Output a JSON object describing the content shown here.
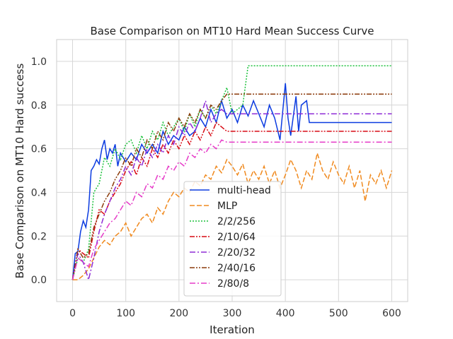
{
  "chart_data": {
    "type": "line",
    "title": "Base Comparison on MT10 Hard Mean Success Curve",
    "xlabel": "Iteration",
    "ylabel": "Base Comparison on MT10 Hard success",
    "xlim": [
      -30,
      630
    ],
    "ylim": [
      -0.1,
      1.1
    ],
    "xticks": [
      0,
      100,
      200,
      300,
      400,
      500,
      600
    ],
    "yticks": [
      0.0,
      0.2,
      0.4,
      0.6,
      0.8,
      1.0
    ],
    "xtick_labels": [
      "0",
      "100",
      "200",
      "300",
      "400",
      "500",
      "600"
    ],
    "ytick_labels": [
      "0.0",
      "0.2",
      "0.4",
      "0.6",
      "0.8",
      "1.0"
    ],
    "grid": true,
    "legend_position": "lower-center",
    "series": [
      {
        "name": "multi-head",
        "color": "#0b3be0",
        "dash": "solid",
        "points": [
          [
            0,
            0.0
          ],
          [
            5,
            0.12
          ],
          [
            10,
            0.13
          ],
          [
            15,
            0.22
          ],
          [
            20,
            0.27
          ],
          [
            25,
            0.24
          ],
          [
            30,
            0.32
          ],
          [
            35,
            0.5
          ],
          [
            40,
            0.52
          ],
          [
            45,
            0.55
          ],
          [
            50,
            0.53
          ],
          [
            55,
            0.6
          ],
          [
            60,
            0.64
          ],
          [
            65,
            0.55
          ],
          [
            70,
            0.6
          ],
          [
            75,
            0.58
          ],
          [
            80,
            0.62
          ],
          [
            85,
            0.52
          ],
          [
            90,
            0.58
          ],
          [
            100,
            0.54
          ],
          [
            110,
            0.58
          ],
          [
            120,
            0.55
          ],
          [
            130,
            0.62
          ],
          [
            140,
            0.58
          ],
          [
            150,
            0.62
          ],
          [
            160,
            0.58
          ],
          [
            170,
            0.68
          ],
          [
            180,
            0.62
          ],
          [
            190,
            0.66
          ],
          [
            200,
            0.64
          ],
          [
            210,
            0.7
          ],
          [
            220,
            0.66
          ],
          [
            230,
            0.68
          ],
          [
            240,
            0.74
          ],
          [
            250,
            0.7
          ],
          [
            260,
            0.78
          ],
          [
            270,
            0.72
          ],
          [
            280,
            0.82
          ],
          [
            290,
            0.74
          ],
          [
            300,
            0.78
          ],
          [
            310,
            0.72
          ],
          [
            320,
            0.8
          ],
          [
            330,
            0.75
          ],
          [
            340,
            0.82
          ],
          [
            350,
            0.76
          ],
          [
            360,
            0.7
          ],
          [
            370,
            0.8
          ],
          [
            380,
            0.74
          ],
          [
            390,
            0.64
          ],
          [
            400,
            0.9
          ],
          [
            405,
            0.74
          ],
          [
            410,
            0.66
          ],
          [
            420,
            0.84
          ],
          [
            425,
            0.68
          ],
          [
            430,
            0.8
          ],
          [
            440,
            0.82
          ],
          [
            445,
            0.72
          ],
          [
            600,
            0.72
          ]
        ]
      },
      {
        "name": "MLP",
        "color": "#f08a1f",
        "dash": "dashed",
        "points": [
          [
            0,
            0.0
          ],
          [
            10,
            0.0
          ],
          [
            20,
            0.02
          ],
          [
            30,
            0.05
          ],
          [
            40,
            0.1
          ],
          [
            50,
            0.15
          ],
          [
            60,
            0.18
          ],
          [
            70,
            0.16
          ],
          [
            80,
            0.2
          ],
          [
            90,
            0.22
          ],
          [
            100,
            0.26
          ],
          [
            110,
            0.2
          ],
          [
            120,
            0.24
          ],
          [
            130,
            0.28
          ],
          [
            140,
            0.3
          ],
          [
            150,
            0.26
          ],
          [
            160,
            0.33
          ],
          [
            170,
            0.3
          ],
          [
            180,
            0.36
          ],
          [
            190,
            0.4
          ],
          [
            200,
            0.38
          ],
          [
            210,
            0.42
          ],
          [
            220,
            0.4
          ],
          [
            230,
            0.45
          ],
          [
            240,
            0.43
          ],
          [
            250,
            0.48
          ],
          [
            260,
            0.46
          ],
          [
            270,
            0.52
          ],
          [
            280,
            0.49
          ],
          [
            290,
            0.55
          ],
          [
            300,
            0.52
          ],
          [
            310,
            0.48
          ],
          [
            320,
            0.53
          ],
          [
            330,
            0.44
          ],
          [
            340,
            0.5
          ],
          [
            350,
            0.46
          ],
          [
            360,
            0.52
          ],
          [
            370,
            0.44
          ],
          [
            380,
            0.5
          ],
          [
            390,
            0.42
          ],
          [
            400,
            0.48
          ],
          [
            410,
            0.55
          ],
          [
            420,
            0.5
          ],
          [
            430,
            0.42
          ],
          [
            440,
            0.5
          ],
          [
            450,
            0.46
          ],
          [
            460,
            0.58
          ],
          [
            470,
            0.5
          ],
          [
            480,
            0.46
          ],
          [
            490,
            0.54
          ],
          [
            500,
            0.48
          ],
          [
            510,
            0.44
          ],
          [
            520,
            0.52
          ],
          [
            530,
            0.42
          ],
          [
            540,
            0.5
          ],
          [
            550,
            0.36
          ],
          [
            560,
            0.48
          ],
          [
            570,
            0.44
          ],
          [
            580,
            0.5
          ],
          [
            590,
            0.42
          ],
          [
            600,
            0.5
          ]
        ]
      },
      {
        "name": "2/2/256",
        "color": "#1bc13b",
        "dash": "dotted",
        "points": [
          [
            0,
            0.0
          ],
          [
            10,
            0.1
          ],
          [
            20,
            0.08
          ],
          [
            30,
            0.14
          ],
          [
            40,
            0.4
          ],
          [
            50,
            0.44
          ],
          [
            60,
            0.56
          ],
          [
            70,
            0.52
          ],
          [
            80,
            0.6
          ],
          [
            90,
            0.55
          ],
          [
            100,
            0.62
          ],
          [
            110,
            0.64
          ],
          [
            120,
            0.58
          ],
          [
            130,
            0.66
          ],
          [
            140,
            0.6
          ],
          [
            150,
            0.68
          ],
          [
            160,
            0.64
          ],
          [
            170,
            0.72
          ],
          [
            180,
            0.66
          ],
          [
            190,
            0.7
          ],
          [
            200,
            0.74
          ],
          [
            210,
            0.68
          ],
          [
            220,
            0.76
          ],
          [
            230,
            0.7
          ],
          [
            240,
            0.78
          ],
          [
            250,
            0.74
          ],
          [
            260,
            0.8
          ],
          [
            270,
            0.76
          ],
          [
            280,
            0.82
          ],
          [
            290,
            0.88
          ],
          [
            300,
            0.76
          ],
          [
            310,
            0.78
          ],
          [
            320,
            0.8
          ],
          [
            330,
            0.98
          ],
          [
            600,
            0.98
          ]
        ]
      },
      {
        "name": "2/10/64",
        "color": "#d80a14",
        "dash": "dashdotdot",
        "points": [
          [
            0,
            0.0
          ],
          [
            10,
            0.14
          ],
          [
            20,
            0.12
          ],
          [
            30,
            0.1
          ],
          [
            40,
            0.22
          ],
          [
            50,
            0.32
          ],
          [
            60,
            0.3
          ],
          [
            70,
            0.36
          ],
          [
            80,
            0.4
          ],
          [
            90,
            0.44
          ],
          [
            100,
            0.5
          ],
          [
            110,
            0.54
          ],
          [
            120,
            0.48
          ],
          [
            130,
            0.56
          ],
          [
            140,
            0.52
          ],
          [
            150,
            0.6
          ],
          [
            160,
            0.56
          ],
          [
            170,
            0.62
          ],
          [
            180,
            0.58
          ],
          [
            190,
            0.64
          ],
          [
            200,
            0.6
          ],
          [
            210,
            0.66
          ],
          [
            220,
            0.62
          ],
          [
            230,
            0.68
          ],
          [
            240,
            0.64
          ],
          [
            250,
            0.7
          ],
          [
            260,
            0.66
          ],
          [
            270,
            0.72
          ],
          [
            280,
            0.7
          ],
          [
            290,
            0.68
          ],
          [
            300,
            0.68
          ],
          [
            600,
            0.68
          ]
        ]
      },
      {
        "name": "2/20/32",
        "color": "#8e2bd6",
        "dash": "dashdot",
        "points": [
          [
            0,
            0.0
          ],
          [
            10,
            0.12
          ],
          [
            20,
            0.08
          ],
          [
            30,
            0.0
          ],
          [
            40,
            0.1
          ],
          [
            50,
            0.22
          ],
          [
            60,
            0.3
          ],
          [
            70,
            0.36
          ],
          [
            80,
            0.42
          ],
          [
            90,
            0.46
          ],
          [
            100,
            0.52
          ],
          [
            110,
            0.48
          ],
          [
            120,
            0.56
          ],
          [
            130,
            0.52
          ],
          [
            140,
            0.6
          ],
          [
            150,
            0.56
          ],
          [
            160,
            0.62
          ],
          [
            170,
            0.58
          ],
          [
            180,
            0.66
          ],
          [
            190,
            0.62
          ],
          [
            200,
            0.7
          ],
          [
            210,
            0.66
          ],
          [
            220,
            0.72
          ],
          [
            230,
            0.68
          ],
          [
            240,
            0.74
          ],
          [
            250,
            0.82
          ],
          [
            260,
            0.72
          ],
          [
            270,
            0.76
          ],
          [
            280,
            0.78
          ],
          [
            290,
            0.76
          ],
          [
            300,
            0.76
          ],
          [
            600,
            0.76
          ]
        ]
      },
      {
        "name": "2/40/16",
        "color": "#8b3a0a",
        "dash": "dashdotdot",
        "points": [
          [
            0,
            0.0
          ],
          [
            10,
            0.14
          ],
          [
            20,
            0.1
          ],
          [
            30,
            0.12
          ],
          [
            40,
            0.24
          ],
          [
            50,
            0.3
          ],
          [
            60,
            0.36
          ],
          [
            70,
            0.4
          ],
          [
            80,
            0.46
          ],
          [
            90,
            0.5
          ],
          [
            100,
            0.56
          ],
          [
            110,
            0.52
          ],
          [
            120,
            0.6
          ],
          [
            130,
            0.56
          ],
          [
            140,
            0.64
          ],
          [
            150,
            0.6
          ],
          [
            160,
            0.68
          ],
          [
            170,
            0.64
          ],
          [
            180,
            0.72
          ],
          [
            190,
            0.68
          ],
          [
            200,
            0.74
          ],
          [
            210,
            0.7
          ],
          [
            220,
            0.76
          ],
          [
            230,
            0.72
          ],
          [
            240,
            0.78
          ],
          [
            250,
            0.74
          ],
          [
            260,
            0.8
          ],
          [
            270,
            0.78
          ],
          [
            280,
            0.82
          ],
          [
            290,
            0.85
          ],
          [
            600,
            0.85
          ]
        ]
      },
      {
        "name": "2/80/8",
        "color": "#e63cc8",
        "dash": "dashdot",
        "points": [
          [
            0,
            0.0
          ],
          [
            10,
            0.1
          ],
          [
            20,
            0.08
          ],
          [
            30,
            0.06
          ],
          [
            40,
            0.14
          ],
          [
            50,
            0.18
          ],
          [
            60,
            0.22
          ],
          [
            70,
            0.26
          ],
          [
            80,
            0.28
          ],
          [
            90,
            0.32
          ],
          [
            100,
            0.36
          ],
          [
            110,
            0.34
          ],
          [
            120,
            0.4
          ],
          [
            130,
            0.38
          ],
          [
            140,
            0.44
          ],
          [
            150,
            0.42
          ],
          [
            160,
            0.48
          ],
          [
            170,
            0.46
          ],
          [
            180,
            0.52
          ],
          [
            190,
            0.5
          ],
          [
            200,
            0.54
          ],
          [
            210,
            0.52
          ],
          [
            220,
            0.58
          ],
          [
            230,
            0.56
          ],
          [
            240,
            0.6
          ],
          [
            250,
            0.58
          ],
          [
            260,
            0.62
          ],
          [
            270,
            0.6
          ],
          [
            280,
            0.64
          ],
          [
            290,
            0.63
          ],
          [
            600,
            0.63
          ]
        ]
      }
    ]
  }
}
